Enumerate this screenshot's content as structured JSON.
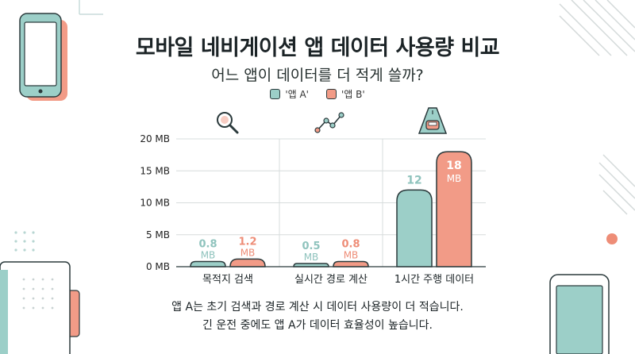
{
  "header": {
    "title": "모바일 네비게이션 앱 데이터 사용량 비교",
    "subtitle": "어느 앱이 데이터를 더 적게 쓸까?"
  },
  "colors": {
    "app_a": "#9ccfc8",
    "app_b": "#f29b87",
    "label_a": "#8fc3bd",
    "label_b": "#ee8d77",
    "outline": "#2b3a3c",
    "grid": "#d7dcdc"
  },
  "icons": [
    "search-icon",
    "route-icon",
    "road-car-icon"
  ],
  "chart_data": {
    "type": "bar",
    "title": "모바일 네비게이션 앱 데이터 사용량 비교",
    "subtitle": "어느 앱이 데이터를 더 적게 쓸까?",
    "categories": [
      "목적지 검색",
      "실시간 경로 계산",
      "1시간 주행 데이터"
    ],
    "series": [
      {
        "name": "'앱 A'",
        "values": [
          0.8,
          0.5,
          12
        ]
      },
      {
        "name": "'앱 B'",
        "values": [
          1.2,
          0.8,
          18
        ]
      }
    ],
    "unit": "MB",
    "yticks": [
      "0 MB",
      "5 MB",
      "10 MB",
      "15 MB",
      "20 MB"
    ],
    "ylim": [
      0,
      20
    ],
    "grid": true,
    "legend_position": "top-center"
  },
  "notes": {
    "line1": "앱 A는 초기 검색과 경로 계산 시 데이터 사용량이 더 적습니다.",
    "line2": "긴 운전 중에도 앱 A가 데이터 효율성이 높습니다."
  }
}
